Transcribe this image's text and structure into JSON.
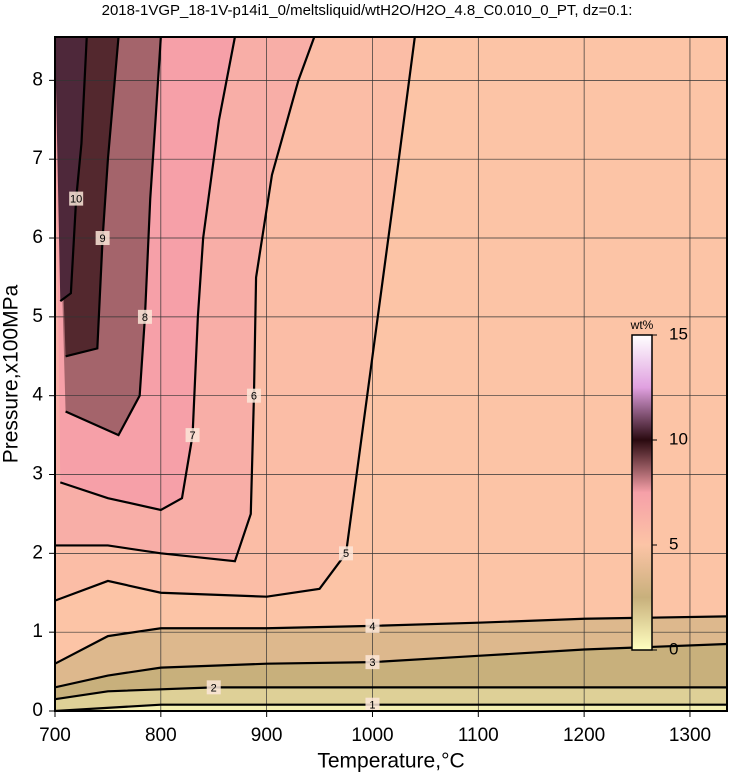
{
  "chart_data": {
    "type": "contour",
    "title": "2018-1VGP_18-1V-p14i1_0/meltsliquid/wtH2O/H2O_4.8_C0.010_0_PT, dz=0.1:",
    "x_label": "Temperature,°C",
    "y_label": "Pressure,x100MPa",
    "xlim": [
      700,
      1335
    ],
    "ylim": [
      0,
      8.55
    ],
    "xticks": [
      700,
      800,
      900,
      1000,
      1100,
      1200,
      1300
    ],
    "yticks": [
      0,
      1,
      2,
      3,
      4,
      5,
      6,
      7,
      8
    ],
    "grid": true,
    "line_color": "#000000",
    "contours": [
      {
        "level": 1,
        "x": [
          700,
          800,
          1000,
          1335
        ],
        "y": [
          0.0,
          0.08,
          0.08,
          0.08
        ]
      },
      {
        "level": 2,
        "x": [
          700,
          750,
          850,
          1000,
          1335
        ],
        "y": [
          0.15,
          0.25,
          0.3,
          0.3,
          0.3
        ]
      },
      {
        "level": 3,
        "x": [
          700,
          750,
          800,
          900,
          1000,
          1100,
          1200,
          1335
        ],
        "y": [
          0.3,
          0.45,
          0.55,
          0.6,
          0.62,
          0.7,
          0.78,
          0.85
        ]
      },
      {
        "level": 4,
        "x": [
          700,
          750,
          800,
          900,
          1000,
          1100,
          1200,
          1335
        ],
        "y": [
          0.6,
          0.95,
          1.05,
          1.05,
          1.08,
          1.12,
          1.17,
          1.2
        ]
      },
      {
        "level": 5,
        "x": [
          700,
          750,
          800,
          900,
          950,
          975,
          990,
          1000,
          1020,
          1040
        ],
        "y": [
          1.4,
          1.65,
          1.5,
          1.45,
          1.55,
          2.0,
          3.5,
          4.5,
          6.5,
          8.55
        ]
      },
      {
        "level": 6,
        "x": [
          700,
          750,
          800,
          870,
          885,
          888,
          890,
          905,
          930,
          945
        ],
        "y": [
          2.1,
          2.1,
          2.0,
          1.9,
          2.5,
          4.0,
          5.5,
          6.8,
          8.0,
          8.55
        ]
      },
      {
        "level": 7,
        "x": [
          705,
          750,
          800,
          820,
          830,
          835,
          840,
          855,
          870
        ],
        "y": [
          2.9,
          2.7,
          2.55,
          2.7,
          3.5,
          5.0,
          6.0,
          7.5,
          8.55
        ]
      },
      {
        "level": 8,
        "x": [
          710,
          760,
          780,
          785,
          790,
          795,
          800
        ],
        "y": [
          3.8,
          3.5,
          4.0,
          5.0,
          6.5,
          7.5,
          8.55
        ]
      },
      {
        "level": 9,
        "x": [
          710,
          740,
          745,
          750,
          760
        ],
        "y": [
          4.5,
          4.6,
          6.0,
          7.0,
          8.55
        ]
      },
      {
        "level": 10,
        "x": [
          705,
          715,
          720,
          725,
          730
        ],
        "y": [
          5.2,
          5.3,
          6.5,
          7.2,
          8.55
        ]
      }
    ],
    "colorbar": {
      "label": "wt%",
      "lim": [
        0,
        15
      ],
      "ticks": [
        0,
        5,
        10,
        15
      ],
      "colors": [
        "#ffffc0",
        "#c8b07c",
        "#fcc4a6",
        "#f6a0a8",
        "#2a0a10",
        "#e0a0e0",
        "#ffffff"
      ]
    }
  }
}
